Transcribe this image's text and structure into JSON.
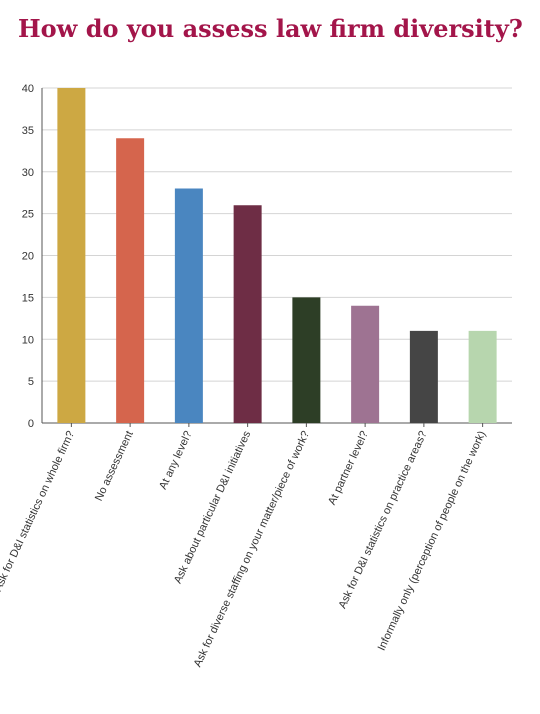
{
  "chart_data": {
    "type": "bar",
    "title": "How do you assess law firm diversity?",
    "xlabel": "",
    "ylabel": "",
    "ylim": [
      0,
      40
    ],
    "yticks": [
      0,
      5,
      10,
      15,
      20,
      25,
      30,
      35,
      40
    ],
    "grid": true,
    "categories": [
      "Ask for D&I statistics on whole firm?",
      "No assessment",
      "At any level?",
      "Ask about particular D&I initiatives",
      "Ask for diverse staffing on your matter/piece of work?",
      "At partner level?",
      "Ask for D&I statistics on practice areas?",
      "Informally only (perception of people on the work)"
    ],
    "values": [
      40,
      34,
      28,
      26,
      15,
      14,
      11,
      11
    ],
    "colors": [
      "#cda843",
      "#d5654d",
      "#4a86c0",
      "#6e2d45",
      "#2d3e26",
      "#9e7392",
      "#454545",
      "#b7d6ae"
    ]
  }
}
